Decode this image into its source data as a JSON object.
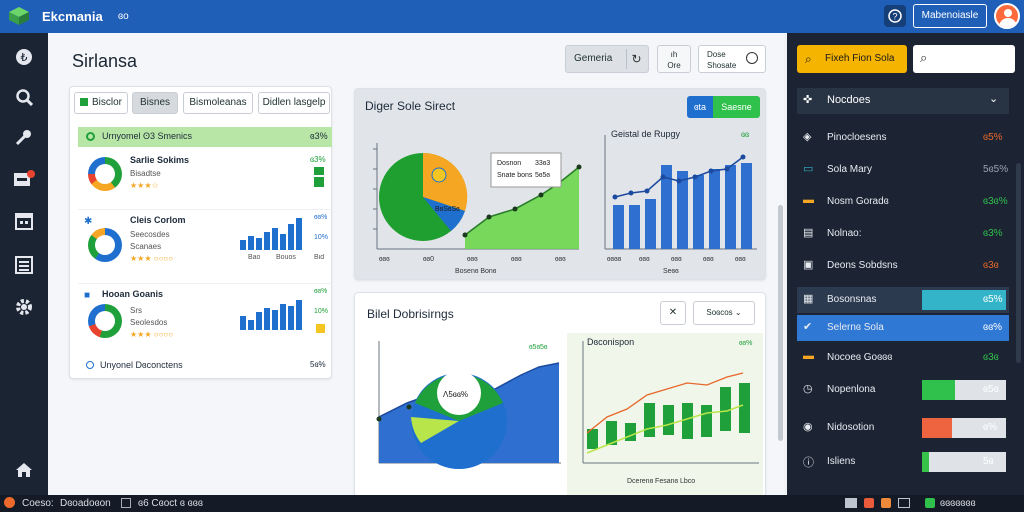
{
  "app": {
    "title": "Ekcmania",
    "icons_label": "ɞo",
    "help_icon": "question-icon",
    "account_button": "Mabenoiasle"
  },
  "sidebar": {
    "icons": [
      "scale-icon",
      "search-icon",
      "key-icon",
      "inbox-icon",
      "calendar-icon",
      "list-icon",
      "gear-icon",
      "home-icon"
    ]
  },
  "page": {
    "title": "Sirlansa"
  },
  "toolbar": {
    "general": "Gemeria",
    "refresh_icon": "refresh-icon",
    "item3": "ıh\nOre",
    "item4": "Dose\nShosate"
  },
  "left_card": {
    "tabs": [
      "Bisclor",
      "Bisnes",
      "Bismoleanas",
      "Didlen lasgelp"
    ],
    "highlight_row": {
      "label": "Urnyomel ʘ3 Smenics",
      "value": "ɞ3%"
    },
    "rows": [
      {
        "title": "Sarlie Sokims",
        "line1": "Bisadtse",
        "line2": "Solasd",
        "stars": "★★★☆",
        "p1": "ɞ3%",
        "p2": "5%"
      },
      {
        "title": "Cleis Corlom",
        "line1": "Seecosdes",
        "line2": "Scanaes",
        "stars": "★★★ ○○○○",
        "p1": "ɞɞ%",
        "p2": "10%",
        "labels": [
          "Bao",
          "Bouos",
          "Bid"
        ]
      },
      {
        "title": "Hooan Goanis",
        "line1": "Srs",
        "line2": "Seolesdos",
        "stars": "★★★ ○○○○",
        "p1": "ɞɞ%",
        "p2": "10%"
      }
    ],
    "footer": {
      "label": "Unyonel Dɞconctens",
      "value": "5ɞ%"
    }
  },
  "chart1": {
    "title": "Diger Sole Sirect",
    "toggle": [
      "ɞta",
      "Saesne"
    ],
    "pie_label": "BɞSɞSɞ",
    "legend": [
      "Dosnon",
      "Snate bons"
    ],
    "legend_values": [
      "33ɞ3",
      "5ɞ5ɞ"
    ],
    "ticks": [
      "ɞɞɞ",
      "ɞɞ0",
      "ɞɞɞ",
      "ɞɞɞ",
      "ɞɞɞ"
    ],
    "xlabel": "Bosenɞ Bonɞ"
  },
  "chart2": {
    "title": "Geistal de Rupgy",
    "value": "ɞɞ",
    "xlabel": "Seɞɞ",
    "ticks": [
      "ɞɞɞɞ",
      "ɞɞɞ",
      "ɞɞɞ",
      "ɞɞɞ",
      "ɞɞɞ"
    ]
  },
  "bottom": {
    "title": "Bilel Dobrisirngs",
    "filter_value": "Soɞcos",
    "pie_label": "Ʌ5ɞɞ%",
    "value_left": "ɞ5ɞ5ɞ",
    "right_title": "Dɞconispon",
    "value_right": "ɞɞ%",
    "xlabel": "Dcerenɞ Fesanɞ Lbco"
  },
  "right_panel": {
    "action_button": "Fixeh Fion Sola",
    "search_placeholder": "",
    "section": "Nocdoes",
    "rows": [
      {
        "icon": "shield-icon",
        "label": "Pinocloesens",
        "value": "ɞ5%",
        "color": "#e8672a"
      },
      {
        "icon": "chat-icon",
        "label": "Sola Mary",
        "value": "5ɞ5%",
        "color": "#9aa3ad"
      },
      {
        "icon": "folder-icon",
        "label": "Nosm Goradɞ",
        "value": "ɞ3ɞ%",
        "color": "#2fc14b"
      },
      {
        "icon": "doc-icon",
        "label": "Nolnao:",
        "value": "ɞ3%",
        "color": "#2fc14b"
      },
      {
        "icon": "box-icon",
        "label": "Deons Sobdsns",
        "value": "ɞ3ɞ",
        "color": "#e8672a"
      },
      {
        "icon": "grid-icon",
        "label": "Bosonsnas",
        "value": "ɞ5%",
        "color": "#ffffff",
        "progress": 0.35,
        "bar_color": "#34b4c9"
      },
      {
        "icon": "check-icon",
        "label": "Selernɞ Sola",
        "value": "ɞɞ%",
        "color": "#ffffff",
        "progress": 0,
        "bar_color": "#2f78d4"
      },
      {
        "icon": "folder-icon",
        "label": "Nocoeɞ Goɞɞɞ",
        "value": "ɞ3ɞ",
        "color": "#2fc14b"
      },
      {
        "icon": "clock-icon",
        "label": "Nopenlona",
        "value": "ɞ5ɞ",
        "color": "#ffffff",
        "progress": 0.45,
        "bar_color": "#2fc14b"
      },
      {
        "icon": "globe-icon",
        "label": "Nidosotion",
        "value": "ɞ%",
        "color": "#ffffff",
        "progress": 0.4,
        "bar_color": "#ee6441"
      },
      {
        "icon": "info-icon",
        "label": "Isliens",
        "value": "5ɞ",
        "color": "#ffffff",
        "progress": 0.1,
        "bar_color": "#37c24a"
      }
    ]
  },
  "statusbar": {
    "left1": "Coeso:",
    "left2": "Dɞoadoɞon",
    "mid": "ɞ6 Cɞoct ɞ ɞɞɞ",
    "right": "ɞɞɞɞɞɞɞ"
  }
}
